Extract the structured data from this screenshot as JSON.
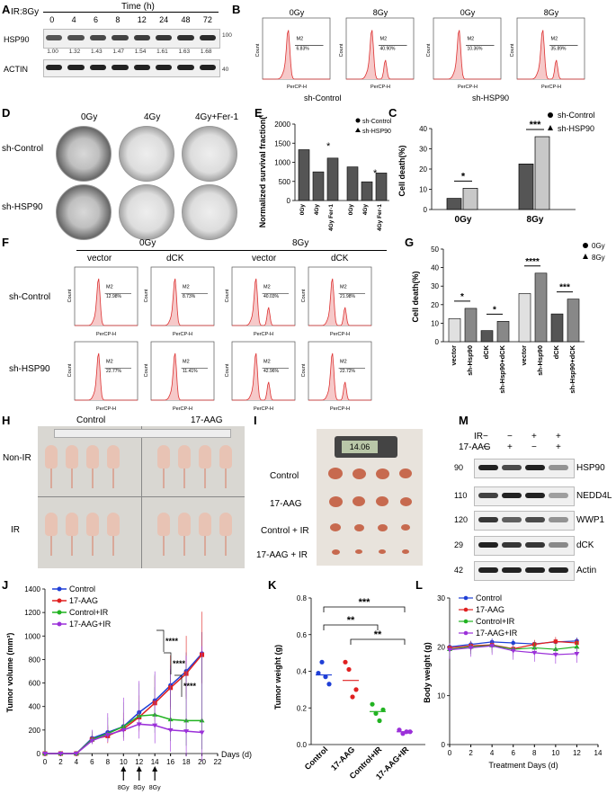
{
  "panels": {
    "A": "A",
    "B": "B",
    "C": "C",
    "D": "D",
    "E": "E",
    "F": "F",
    "G": "G",
    "H": "H",
    "I": "I",
    "J": "J",
    "K": "K",
    "L": "L",
    "M": "M"
  },
  "A": {
    "ir_label": "IR:8Gy",
    "time_label": "Time (h)",
    "times": [
      "0",
      "4",
      "6",
      "8",
      "12",
      "24",
      "48",
      "72"
    ],
    "row1": "HSP90",
    "row2": "ACTIN",
    "ratios": [
      "1.00",
      "1.32",
      "1.43",
      "1.47",
      "1.54",
      "1.61",
      "1.63",
      "1.68"
    ],
    "mw1": "100",
    "mw2": "40"
  },
  "B": {
    "titles": [
      "0Gy",
      "8Gy",
      "0Gy",
      "8Gy"
    ],
    "group1": "sh-Control",
    "group2": "sh-HSP90",
    "gate": "M2",
    "xlabel": "PerCP-H",
    "ylabel": "Count",
    "gate_vals": [
      "6.83%",
      "40.90%",
      "10.36%",
      "35.89%"
    ]
  },
  "C": {
    "ylabel": "Cell death(%)",
    "categories": [
      "0Gy",
      "8Gy"
    ],
    "legend": [
      "sh-Control",
      "sh-HSP90"
    ],
    "ticks": [
      "0",
      "10",
      "20",
      "30",
      "40"
    ],
    "sig": [
      "*",
      "***"
    ]
  },
  "D": {
    "cols": [
      "0Gy",
      "4Gy",
      "4Gy+Fer-1"
    ],
    "rows": [
      "sh-Control",
      "sh-HSP90"
    ]
  },
  "E": {
    "ylabel": "Normalized survival fraction(%)",
    "ticks": [
      "0",
      "500",
      "1000",
      "1500",
      "2000"
    ],
    "xlabels": [
      "0Gy",
      "4Gy",
      "4Gy Fer-1",
      "0Gy",
      "4Gy",
      "4Gy Fer-1"
    ],
    "legend": [
      "sh-Control",
      "sh-HSP90"
    ],
    "sig": [
      "*",
      "*"
    ]
  },
  "F": {
    "dose": [
      "0Gy",
      "8Gy"
    ],
    "cols": [
      "vector",
      "dCK",
      "vector",
      "dCK"
    ],
    "rows": [
      "sh-Control",
      "sh-HSP90"
    ],
    "gate": "M2",
    "xlabel": "PerCP-H",
    "ylabel": "Count",
    "gate_vals": [
      "12.98%",
      "8.73%",
      "40.03%",
      "21.98%",
      "22.77%",
      "11.41%",
      "42.96%",
      "22.72%"
    ]
  },
  "G": {
    "ylabel": "Cell death(%)",
    "ticks": [
      "0",
      "10",
      "20",
      "30",
      "40",
      "50"
    ],
    "xlabels": [
      "vector",
      "sh-Hsp90",
      "dCK",
      "sh-Hsp90+dCK",
      "vector",
      "sh-Hsp90",
      "dCK",
      "sh-Hsp90+dCK"
    ],
    "legend": [
      "0Gy",
      "8Gy"
    ],
    "sig": [
      "*",
      "*",
      "****",
      "***"
    ]
  },
  "H": {
    "cols": [
      "Control",
      "17-AAG"
    ],
    "rows": [
      "Non-IR",
      "IR"
    ]
  },
  "I": {
    "rows": [
      "Control",
      "17-AAG",
      "Control + IR",
      "17-AAG + IR"
    ],
    "caliper": "14.06"
  },
  "M": {
    "ir_label": "IR",
    "aag_label": "17-AAG",
    "ir": [
      "−",
      "−",
      "+",
      "+"
    ],
    "aag": [
      "−",
      "+",
      "−",
      "+"
    ],
    "proteins": [
      "HSP90",
      "NEDD4L",
      "WWP1",
      "dCK",
      "Actin"
    ],
    "mw": [
      "90",
      "110",
      "120",
      "29",
      "42"
    ]
  },
  "J": {
    "ylabel": "Tumor volume (mm³)",
    "xlabel": "Days (d)",
    "legend": [
      "Control",
      "17-AAG",
      "Control+IR",
      "17-AAG+IR"
    ],
    "ticks_y": [
      "0",
      "200",
      "400",
      "600",
      "800",
      "1000",
      "1200",
      "1400"
    ],
    "ticks_x": [
      "0",
      "2",
      "4",
      "6",
      "8",
      "10",
      "12",
      "14",
      "16",
      "18",
      "20",
      "22"
    ],
    "arrows": [
      "8Gy",
      "8Gy",
      "8Gy"
    ],
    "sig": [
      "****",
      "****",
      "****"
    ]
  },
  "K": {
    "ylabel": "Tumor weight (g)",
    "ticks": [
      "0.0",
      "0.2",
      "0.4",
      "0.6",
      "0.8"
    ],
    "groups": [
      "Control",
      "17-AAG",
      "Control+IR",
      "17-AAG+IR"
    ],
    "sig": [
      "***",
      "**",
      "**"
    ]
  },
  "L": {
    "ylabel": "Body weight (g)",
    "xlabel": "Treatment Days (d)",
    "legend": [
      "Control",
      "17-AAG",
      "Control+IR",
      "17-AAG+IR"
    ],
    "ticks_y": [
      "0",
      "10",
      "20",
      "30"
    ],
    "ticks_x": [
      "0",
      "2",
      "4",
      "6",
      "8",
      "10",
      "12",
      "14"
    ]
  },
  "chart_data": [
    {
      "panel": "C",
      "type": "bar",
      "categories": [
        "0Gy",
        "8Gy"
      ],
      "series": [
        {
          "name": "sh-Control",
          "values": [
            5.5,
            22.5
          ]
        },
        {
          "name": "sh-HSP90",
          "values": [
            10.5,
            36
          ]
        }
      ],
      "ylabel": "Cell death(%)",
      "ylim": [
        0,
        40
      ]
    },
    {
      "panel": "E",
      "type": "bar",
      "categories": [
        "0Gy",
        "4Gy",
        "4Gy Fer-1"
      ],
      "series": [
        {
          "name": "sh-Control",
          "values": [
            1330,
            750,
            1110
          ]
        },
        {
          "name": "sh-HSP90",
          "values": [
            880,
            490,
            720
          ]
        }
      ],
      "ylabel": "Normalized survival fraction(%)",
      "ylim": [
        0,
        2000
      ]
    },
    {
      "panel": "G",
      "type": "bar",
      "categories": [
        "vector",
        "sh-Hsp90",
        "dCK",
        "sh-Hsp90+dCK",
        "vector",
        "sh-Hsp90",
        "dCK",
        "sh-Hsp90+dCK"
      ],
      "values": [
        12.5,
        18,
        6,
        11,
        26,
        37,
        15,
        23
      ],
      "groups": [
        "0Gy",
        "0Gy",
        "0Gy",
        "0Gy",
        "8Gy",
        "8Gy",
        "8Gy",
        "8Gy"
      ],
      "ylabel": "Cell death(%)",
      "ylim": [
        0,
        50
      ]
    },
    {
      "panel": "J",
      "type": "line",
      "x": [
        0,
        2,
        4,
        6,
        8,
        10,
        12,
        14,
        16,
        18,
        20
      ],
      "series": [
        {
          "name": "Control",
          "color": "#1f3fd6",
          "values": [
            0,
            0,
            0,
            130,
            180,
            230,
            350,
            450,
            580,
            700,
            850
          ]
        },
        {
          "name": "17-AAG",
          "color": "#e02020",
          "values": [
            0,
            0,
            0,
            120,
            150,
            210,
            310,
            430,
            560,
            680,
            840
          ]
        },
        {
          "name": "Control+IR",
          "color": "#21b321",
          "values": [
            0,
            0,
            0,
            120,
            170,
            230,
            320,
            330,
            290,
            280,
            280
          ]
        },
        {
          "name": "17-AAG+IR",
          "color": "#9b30d9",
          "values": [
            0,
            0,
            0,
            110,
            160,
            200,
            250,
            240,
            200,
            190,
            180
          ]
        }
      ],
      "ylabel": "Tumor volume (mm³)",
      "xlabel": "Days (d)",
      "ylim": [
        0,
        1400
      ],
      "xlim": [
        0,
        22
      ]
    },
    {
      "panel": "K",
      "type": "scatter",
      "categories": [
        "Control",
        "17-AAG",
        "Control+IR",
        "17-AAG+IR"
      ],
      "series": [
        {
          "name": "Control",
          "color": "#1f3fd6",
          "values": [
            0.39,
            0.45,
            0.37,
            0.33
          ],
          "mean": 0.38
        },
        {
          "name": "17-AAG",
          "color": "#e02020",
          "values": [
            0.45,
            0.41,
            0.26,
            0.3
          ],
          "mean": 0.35
        },
        {
          "name": "Control+IR",
          "color": "#21b321",
          "values": [
            0.22,
            0.17,
            0.13,
            0.19
          ],
          "mean": 0.18
        },
        {
          "name": "17-AAG+IR",
          "color": "#9b30d9",
          "values": [
            0.08,
            0.06,
            0.07,
            0.07
          ],
          "mean": 0.07
        }
      ],
      "ylabel": "Tumor weight (g)",
      "ylim": [
        0,
        0.8
      ]
    },
    {
      "panel": "L",
      "type": "line",
      "x": [
        0,
        2,
        4,
        6,
        8,
        10,
        12
      ],
      "series": [
        {
          "name": "Control",
          "color": "#1f3fd6",
          "values": [
            20,
            20.5,
            21,
            20.8,
            20.6,
            21,
            21.2
          ]
        },
        {
          "name": "17-AAG",
          "color": "#e02020",
          "values": [
            19.8,
            20.2,
            20.4,
            19.6,
            20.5,
            21.1,
            20.8
          ]
        },
        {
          "name": "Control+IR",
          "color": "#21b321",
          "values": [
            19.5,
            20,
            20.3,
            19.5,
            19.8,
            19.5,
            20
          ]
        },
        {
          "name": "17-AAG+IR",
          "color": "#9b30d9",
          "values": [
            19.4,
            19.8,
            20.2,
            19.2,
            18.8,
            18.4,
            18.6
          ]
        }
      ],
      "ylabel": "Body weight (g)",
      "xlabel": "Treatment Days (d)",
      "ylim": [
        0,
        30
      ],
      "xlim": [
        0,
        14
      ]
    }
  ]
}
